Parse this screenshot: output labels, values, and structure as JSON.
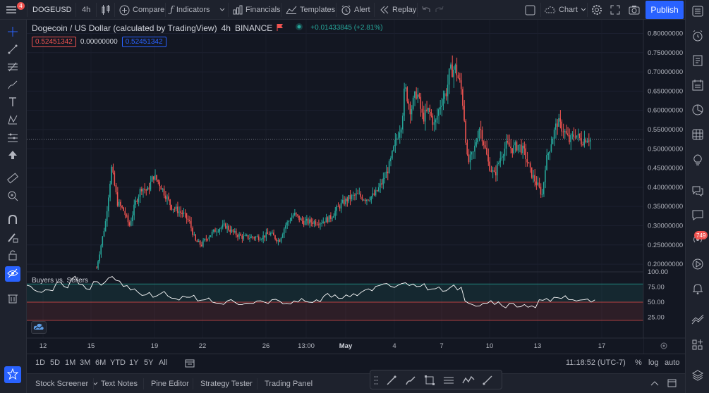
{
  "topbar": {
    "badge_count": "4",
    "symbol": "DOGEUSD",
    "interval": "4h",
    "compare_label": "Compare",
    "indicators_label": "Indicators",
    "financials_label": "Financials",
    "templates_label": "Templates",
    "alert_label": "Alert",
    "replay_label": "Replay",
    "chart_label": "Chart",
    "publish_label": "Publish"
  },
  "legend": {
    "title": "Dogecoin / US Dollar (calculated by TradingView)",
    "interval": "4h",
    "exchange": "BINANCE",
    "change": "+0.01433845 (+2.81%)",
    "bid": "0.52451342",
    "spread": "0.00000000",
    "ask": "0.52451342"
  },
  "colors": {
    "up": "#26a69a",
    "down": "#ef5350",
    "accent": "#2962ff",
    "background": "#131722",
    "panel": "#1e222d"
  },
  "chart_data": {
    "type": "candlestick",
    "y_axis_labels": [
      "0.80000000",
      "0.75000000",
      "0.70000000",
      "0.65000000",
      "0.60000000",
      "0.55000000",
      "0.50000000",
      "0.45000000",
      "0.40000000",
      "0.35000000",
      "0.30000000",
      "0.25000000",
      "0.20000000"
    ],
    "ylim": [
      0.18,
      0.81
    ],
    "last_price": "0.52449500",
    "last_price_value": 0.5245,
    "x_axis_labels": [
      "12",
      "15",
      "19",
      "22",
      "26",
      "13:00",
      "May",
      "4",
      "7",
      "10",
      "13",
      "17"
    ],
    "path": [
      [
        0,
        0.19
      ],
      [
        3,
        0.31
      ],
      [
        5,
        0.45
      ],
      [
        7,
        0.36
      ],
      [
        9,
        0.34
      ],
      [
        11,
        0.3
      ],
      [
        13,
        0.36
      ],
      [
        15,
        0.4
      ],
      [
        17,
        0.39
      ],
      [
        19,
        0.43
      ],
      [
        21,
        0.41
      ],
      [
        23,
        0.38
      ],
      [
        25,
        0.35
      ],
      [
        27,
        0.34
      ],
      [
        29,
        0.33
      ],
      [
        31,
        0.31
      ],
      [
        33,
        0.26
      ],
      [
        35,
        0.25
      ],
      [
        37,
        0.27
      ],
      [
        40,
        0.29
      ],
      [
        43,
        0.3
      ],
      [
        46,
        0.28
      ],
      [
        49,
        0.27
      ],
      [
        52,
        0.27
      ],
      [
        55,
        0.27
      ],
      [
        58,
        0.28
      ],
      [
        61,
        0.26
      ],
      [
        63,
        0.3
      ],
      [
        66,
        0.33
      ],
      [
        69,
        0.31
      ],
      [
        72,
        0.31
      ],
      [
        75,
        0.31
      ],
      [
        78,
        0.32
      ],
      [
        81,
        0.35
      ],
      [
        84,
        0.37
      ],
      [
        87,
        0.38
      ],
      [
        90,
        0.37
      ],
      [
        93,
        0.38
      ],
      [
        96,
        0.42
      ],
      [
        98,
        0.46
      ],
      [
        100,
        0.52
      ],
      [
        102,
        0.57
      ],
      [
        103,
        0.66
      ],
      [
        105,
        0.6
      ],
      [
        107,
        0.65
      ],
      [
        109,
        0.58
      ],
      [
        111,
        0.6
      ],
      [
        113,
        0.56
      ],
      [
        115,
        0.62
      ],
      [
        117,
        0.65
      ],
      [
        118,
        0.7
      ],
      [
        120,
        0.71
      ],
      [
        122,
        0.65
      ],
      [
        123,
        0.57
      ],
      [
        124,
        0.46
      ],
      [
        126,
        0.49
      ],
      [
        128,
        0.56
      ],
      [
        129,
        0.53
      ],
      [
        131,
        0.46
      ],
      [
        133,
        0.43
      ],
      [
        135,
        0.48
      ],
      [
        137,
        0.51
      ],
      [
        139,
        0.5
      ],
      [
        141,
        0.51
      ],
      [
        143,
        0.49
      ],
      [
        145,
        0.44
      ],
      [
        147,
        0.41
      ],
      [
        149,
        0.38
      ],
      [
        150,
        0.46
      ],
      [
        152,
        0.52
      ],
      [
        154,
        0.57
      ],
      [
        156,
        0.55
      ],
      [
        158,
        0.52
      ],
      [
        160,
        0.54
      ],
      [
        162,
        0.52
      ],
      [
        164,
        0.53
      ],
      [
        165,
        0.5245
      ]
    ],
    "path_x_max": 180,
    "indicator": {
      "name": "Buyers vs. Sellers",
      "y_axis_labels": [
        "100.00",
        "75.00",
        "50.00",
        "25.00"
      ],
      "ylim": [
        0,
        100
      ],
      "upper_band": 80,
      "lower_band": 20,
      "mid": 50,
      "values": [
        78,
        70,
        66,
        70,
        82,
        76,
        88,
        80,
        72,
        84,
        78,
        90,
        86,
        76,
        70,
        66,
        62,
        58,
        64,
        60,
        56,
        60,
        58,
        52,
        54,
        50,
        48,
        52,
        50,
        46,
        48,
        52,
        50,
        54,
        52,
        48,
        52,
        56,
        50,
        54,
        60,
        58,
        56,
        62,
        64,
        66,
        72,
        76,
        80,
        76,
        78,
        82,
        80,
        76,
        70,
        72,
        68,
        74,
        70,
        52,
        46,
        44,
        48,
        46,
        44,
        48,
        42,
        46,
        44,
        54,
        56,
        58,
        56,
        54,
        52,
        54,
        50
      ]
    }
  },
  "range_bar": {
    "ranges": [
      "1D",
      "5D",
      "1M",
      "3M",
      "6M",
      "YTD",
      "1Y",
      "5Y",
      "All"
    ],
    "time": "11:18:52 (UTC-7)",
    "percent": "%",
    "log": "log",
    "auto": "auto"
  },
  "bottom_panel": {
    "tabs": [
      "Stock Screener",
      "Text Notes",
      "Pine Editor",
      "Strategy Tester",
      "Trading Panel"
    ]
  },
  "sidebar": {
    "notification_count": "749"
  }
}
